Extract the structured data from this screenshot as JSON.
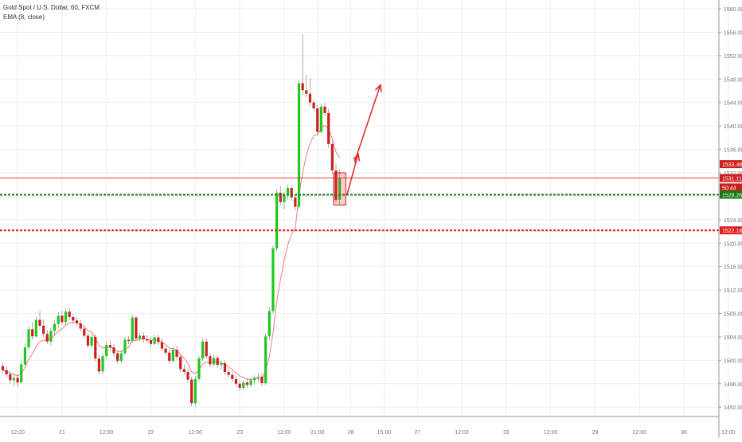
{
  "legend": {
    "symbol": "Gold Spot / U.S. Dollar, 60, FXCM",
    "indicator": "EMA (8, close)"
  },
  "colors": {
    "up": "#1ec81e",
    "down": "#cc1f1f",
    "ema": "#f08080",
    "support": "#117a11",
    "resistance": "#e02020",
    "arrow": "#e03030",
    "grid": "#eeeeee",
    "axis_text": "#777777"
  },
  "chart_data": {
    "type": "candlestick",
    "title": "",
    "xlabel": "",
    "ylabel": "",
    "ylim": [
      1490.4,
      1561.5
    ],
    "y_ticks": [
      1492.0,
      1496.0,
      1500.0,
      1504.0,
      1508.0,
      1512.0,
      1516.0,
      1520.0,
      1524.0,
      1528.0,
      1532.0,
      1536.0,
      1540.0,
      1544.0,
      1548.0,
      1552.0,
      1556.0,
      1560.0
    ],
    "y_tick_labels": [
      "1492.00",
      "1496.00",
      "1500.00",
      "1504.00",
      "1508.00",
      "1512.00",
      "1516.00",
      "1520.00",
      "1524.00",
      "1528.00",
      "1532.00",
      "1536.00",
      "1540.00",
      "1544.00",
      "1548.00",
      "1552.00",
      "1556.00",
      "1560.00"
    ],
    "x_ticks": [
      {
        "label": "12:00",
        "bar": 4
      },
      {
        "label": "21",
        "bar": 16
      },
      {
        "label": "12:00",
        "bar": 28
      },
      {
        "label": "22",
        "bar": 40
      },
      {
        "label": "12:00",
        "bar": 52
      },
      {
        "label": "23",
        "bar": 64
      },
      {
        "label": "12:00",
        "bar": 76
      },
      {
        "label": "21:00",
        "bar": 85
      },
      {
        "label": "26",
        "bar": 94
      },
      {
        "label": "15:00",
        "bar": 103
      },
      {
        "label": "27",
        "bar": 112
      },
      {
        "label": "12:00",
        "bar": 124
      },
      {
        "label": "28",
        "bar": 136
      },
      {
        "label": "12:00",
        "bar": 148
      },
      {
        "label": "29",
        "bar": 160
      },
      {
        "label": "12:00",
        "bar": 172
      },
      {
        "label": "30",
        "bar": 184
      },
      {
        "label": "12:00",
        "bar": 196
      }
    ],
    "candles_ohlc": [
      [
        1499.0,
        1499.5,
        1497.8,
        1498.3
      ],
      [
        1498.3,
        1499.0,
        1497.0,
        1497.6
      ],
      [
        1497.6,
        1498.2,
        1496.0,
        1496.6
      ],
      [
        1496.6,
        1497.8,
        1495.6,
        1497.0
      ],
      [
        1497.0,
        1497.6,
        1495.5,
        1496.2
      ],
      [
        1496.2,
        1499.8,
        1496.0,
        1499.3
      ],
      [
        1499.3,
        1502.8,
        1499.0,
        1502.2
      ],
      [
        1502.2,
        1505.8,
        1501.8,
        1505.3
      ],
      [
        1505.3,
        1506.6,
        1503.5,
        1504.1
      ],
      [
        1504.1,
        1507.5,
        1503.8,
        1506.9
      ],
      [
        1506.9,
        1508.5,
        1505.2,
        1505.9
      ],
      [
        1505.9,
        1507.0,
        1504.0,
        1504.5
      ],
      [
        1504.5,
        1505.2,
        1502.8,
        1503.2
      ],
      [
        1503.2,
        1505.5,
        1502.5,
        1505.0
      ],
      [
        1505.0,
        1506.8,
        1504.2,
        1506.2
      ],
      [
        1506.2,
        1508.2,
        1505.5,
        1507.6
      ],
      [
        1507.6,
        1508.4,
        1506.0,
        1506.5
      ],
      [
        1506.5,
        1508.8,
        1506.0,
        1508.3
      ],
      [
        1508.3,
        1509.0,
        1506.9,
        1507.4
      ],
      [
        1507.4,
        1508.0,
        1506.3,
        1506.8
      ],
      [
        1506.8,
        1507.4,
        1505.8,
        1506.3
      ],
      [
        1506.3,
        1506.9,
        1504.9,
        1505.4
      ],
      [
        1505.4,
        1505.9,
        1503.7,
        1504.2
      ],
      [
        1504.2,
        1504.6,
        1502.0,
        1502.5
      ],
      [
        1502.5,
        1504.5,
        1502.0,
        1504.0
      ],
      [
        1504.0,
        1504.5,
        1499.8,
        1500.3
      ],
      [
        1500.3,
        1500.9,
        1497.6,
        1498.1
      ],
      [
        1498.1,
        1501.2,
        1497.6,
        1500.7
      ],
      [
        1500.7,
        1503.1,
        1500.2,
        1502.6
      ],
      [
        1502.6,
        1503.4,
        1501.6,
        1502.2
      ],
      [
        1502.2,
        1502.8,
        1500.6,
        1501.2
      ],
      [
        1501.2,
        1501.6,
        1499.4,
        1499.9
      ],
      [
        1499.9,
        1501.7,
        1499.5,
        1501.2
      ],
      [
        1501.2,
        1504.0,
        1500.9,
        1503.5
      ],
      [
        1503.5,
        1504.1,
        1502.8,
        1503.3
      ],
      [
        1503.3,
        1507.8,
        1503.0,
        1507.3
      ],
      [
        1507.3,
        1507.6,
        1503.2,
        1503.7
      ],
      [
        1503.7,
        1504.7,
        1503.2,
        1504.2
      ],
      [
        1504.2,
        1504.8,
        1503.0,
        1503.6
      ],
      [
        1503.6,
        1504.3,
        1502.9,
        1503.4
      ],
      [
        1503.4,
        1504.0,
        1502.3,
        1502.8
      ],
      [
        1502.8,
        1504.3,
        1502.5,
        1503.9
      ],
      [
        1503.9,
        1504.4,
        1502.6,
        1503.1
      ],
      [
        1503.1,
        1503.7,
        1501.5,
        1502.0
      ],
      [
        1502.0,
        1502.6,
        1500.8,
        1501.3
      ],
      [
        1501.3,
        1501.9,
        1499.4,
        1499.9
      ],
      [
        1499.9,
        1502.3,
        1499.6,
        1501.8
      ],
      [
        1501.8,
        1502.5,
        1500.1,
        1500.6
      ],
      [
        1500.6,
        1501.1,
        1498.0,
        1498.5
      ],
      [
        1498.5,
        1499.2,
        1497.5,
        1498.0
      ],
      [
        1498.0,
        1498.6,
        1496.2,
        1496.7
      ],
      [
        1496.7,
        1497.2,
        1492.2,
        1492.7
      ],
      [
        1492.7,
        1497.3,
        1492.3,
        1496.8
      ],
      [
        1496.8,
        1500.8,
        1496.4,
        1500.3
      ],
      [
        1500.3,
        1503.8,
        1499.9,
        1503.2
      ],
      [
        1503.2,
        1503.7,
        1500.2,
        1500.7
      ],
      [
        1500.7,
        1501.2,
        1498.8,
        1499.3
      ],
      [
        1499.3,
        1500.9,
        1498.9,
        1500.4
      ],
      [
        1500.4,
        1500.9,
        1498.7,
        1499.2
      ],
      [
        1499.2,
        1500.0,
        1498.4,
        1499.5
      ],
      [
        1499.5,
        1500.0,
        1497.5,
        1498.0
      ],
      [
        1498.0,
        1498.6,
        1497.0,
        1497.5
      ],
      [
        1497.5,
        1498.2,
        1496.3,
        1496.8
      ],
      [
        1496.8,
        1497.3,
        1495.5,
        1496.0
      ],
      [
        1496.0,
        1496.5,
        1494.8,
        1495.3
      ],
      [
        1495.3,
        1496.6,
        1494.9,
        1496.2
      ],
      [
        1496.2,
        1497.0,
        1495.3,
        1495.8
      ],
      [
        1495.8,
        1497.1,
        1495.4,
        1496.6
      ],
      [
        1496.6,
        1497.4,
        1495.8,
        1497.0
      ],
      [
        1497.0,
        1497.9,
        1496.3,
        1497.2
      ],
      [
        1497.2,
        1497.8,
        1495.6,
        1496.1
      ],
      [
        1496.1,
        1504.6,
        1495.8,
        1504.1
      ],
      [
        1504.1,
        1509.0,
        1503.4,
        1508.4
      ],
      [
        1508.4,
        1519.6,
        1508.0,
        1519.1
      ],
      [
        1519.1,
        1529.2,
        1518.6,
        1528.6
      ],
      [
        1528.6,
        1529.8,
        1526.4,
        1527.0
      ],
      [
        1527.0,
        1528.7,
        1525.8,
        1528.2
      ],
      [
        1528.2,
        1530.0,
        1527.4,
        1529.4
      ],
      [
        1529.4,
        1529.9,
        1527.2,
        1527.8
      ],
      [
        1527.8,
        1528.3,
        1525.6,
        1526.2
      ],
      [
        1526.2,
        1547.8,
        1525.8,
        1547.3
      ],
      [
        1547.3,
        1555.7,
        1545.2,
        1546.1
      ],
      [
        1546.1,
        1548.7,
        1544.8,
        1545.5
      ],
      [
        1545.5,
        1548.2,
        1543.4,
        1544.0
      ],
      [
        1544.0,
        1544.6,
        1542.5,
        1543.0
      ],
      [
        1543.0,
        1543.6,
        1538.4,
        1539.0
      ],
      [
        1539.0,
        1543.8,
        1538.6,
        1543.3
      ],
      [
        1543.3,
        1543.9,
        1541.7,
        1542.2
      ],
      [
        1542.2,
        1542.9,
        1536.3,
        1536.9
      ],
      [
        1536.9,
        1537.4,
        1531.8,
        1532.4
      ],
      [
        1532.4,
        1533.6,
        1526.9,
        1527.4
      ],
      [
        1527.4,
        1532.6,
        1526.5,
        1531.1
      ]
    ],
    "ema_label": "EMA (8, close)",
    "horizontal_lines": [
      {
        "price": 1531.11,
        "label": "1531.11",
        "role": "current-price",
        "style": "solid"
      },
      {
        "price": 1528.26,
        "label": "1528.26",
        "role": "support",
        "style": "dotted"
      },
      {
        "price": 1522.18,
        "label": "1522.18",
        "role": "resistance",
        "style": "dotted"
      }
    ],
    "price_labels": [
      {
        "price": 1533.48,
        "text": "1533.48",
        "color": "down"
      },
      {
        "price": 1531.11,
        "text": "1531.11",
        "color": "down"
      },
      {
        "price": 1529.5,
        "text": "50:44",
        "color": "down"
      },
      {
        "price": 1528.26,
        "text": "1528.26",
        "color": "support"
      },
      {
        "price": 1522.18,
        "text": "1522.18",
        "color": "resistance"
      }
    ],
    "highlight_box": {
      "bar_from": 90,
      "bar_to": 92,
      "price_top": 1532.0,
      "price_bottom": 1526.5
    },
    "projection_arrow": [
      {
        "bar": 93,
        "price": 1528.3
      },
      {
        "bar": 96,
        "price": 1535.2
      },
      {
        "bar": 95,
        "price": 1533.8
      },
      {
        "bar": 102,
        "price": 1547.0
      }
    ]
  }
}
